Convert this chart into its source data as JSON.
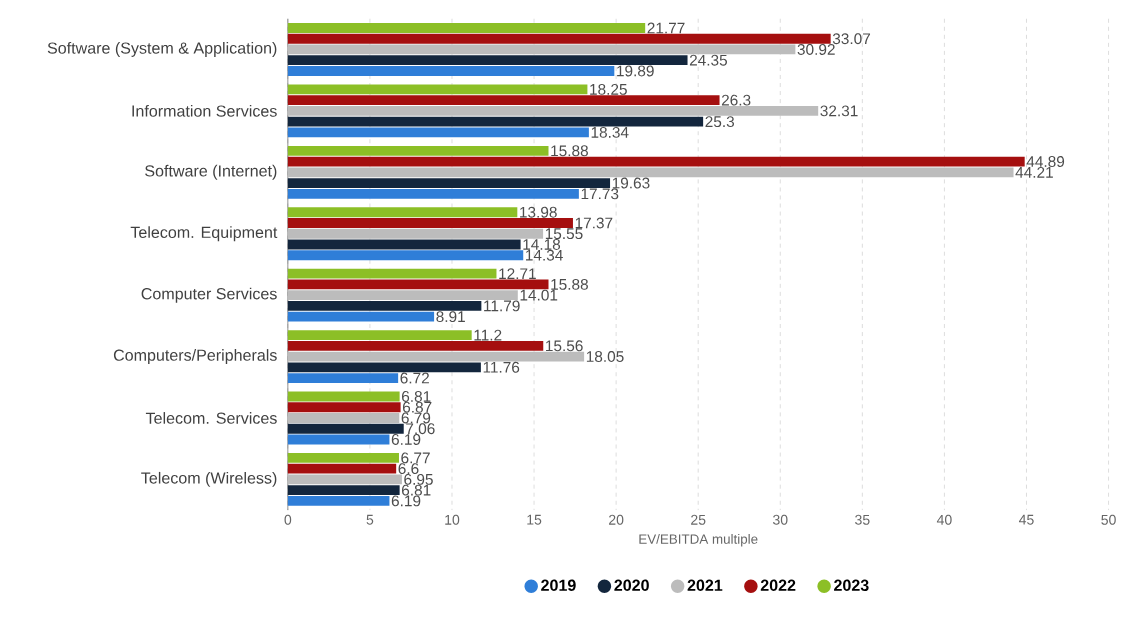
{
  "chart_data": {
    "type": "bar",
    "orientation": "horizontal",
    "xlabel": "EV/EBITDA multiple",
    "categories": [
      "Software (System & Application)",
      "Information Services",
      "Software (Internet)",
      "Telecom. Equipment",
      "Computer Services",
      "Computers/Peripherals",
      "Telecom. Services",
      "Telecom (Wireless)"
    ],
    "series": [
      {
        "name": "2019",
        "color": "#2f7ed8",
        "values": [
          19.89,
          18.34,
          17.73,
          14.34,
          8.91,
          6.72,
          6.19,
          6.19
        ]
      },
      {
        "name": "2020",
        "color": "#13263d",
        "values": [
          24.35,
          25.3,
          19.63,
          14.18,
          11.79,
          11.76,
          7.06,
          6.81
        ]
      },
      {
        "name": "2021",
        "color": "#bcbcbc",
        "values": [
          30.92,
          32.31,
          44.21,
          15.55,
          14.01,
          18.05,
          6.79,
          6.95
        ]
      },
      {
        "name": "2022",
        "color": "#a50f0f",
        "values": [
          33.07,
          26.3,
          44.89,
          17.37,
          15.88,
          15.56,
          6.87,
          6.6
        ]
      },
      {
        "name": "2023",
        "color": "#8cbf26",
        "values": [
          21.77,
          18.25,
          15.88,
          13.98,
          12.71,
          11.2,
          6.81,
          6.77
        ]
      }
    ],
    "xlim": [
      0,
      50
    ],
    "xticks": [
      0,
      5,
      10,
      15,
      20,
      25,
      30,
      35,
      40,
      45,
      50
    ],
    "grid": "x",
    "legend": "bottom",
    "data_labels": true
  }
}
